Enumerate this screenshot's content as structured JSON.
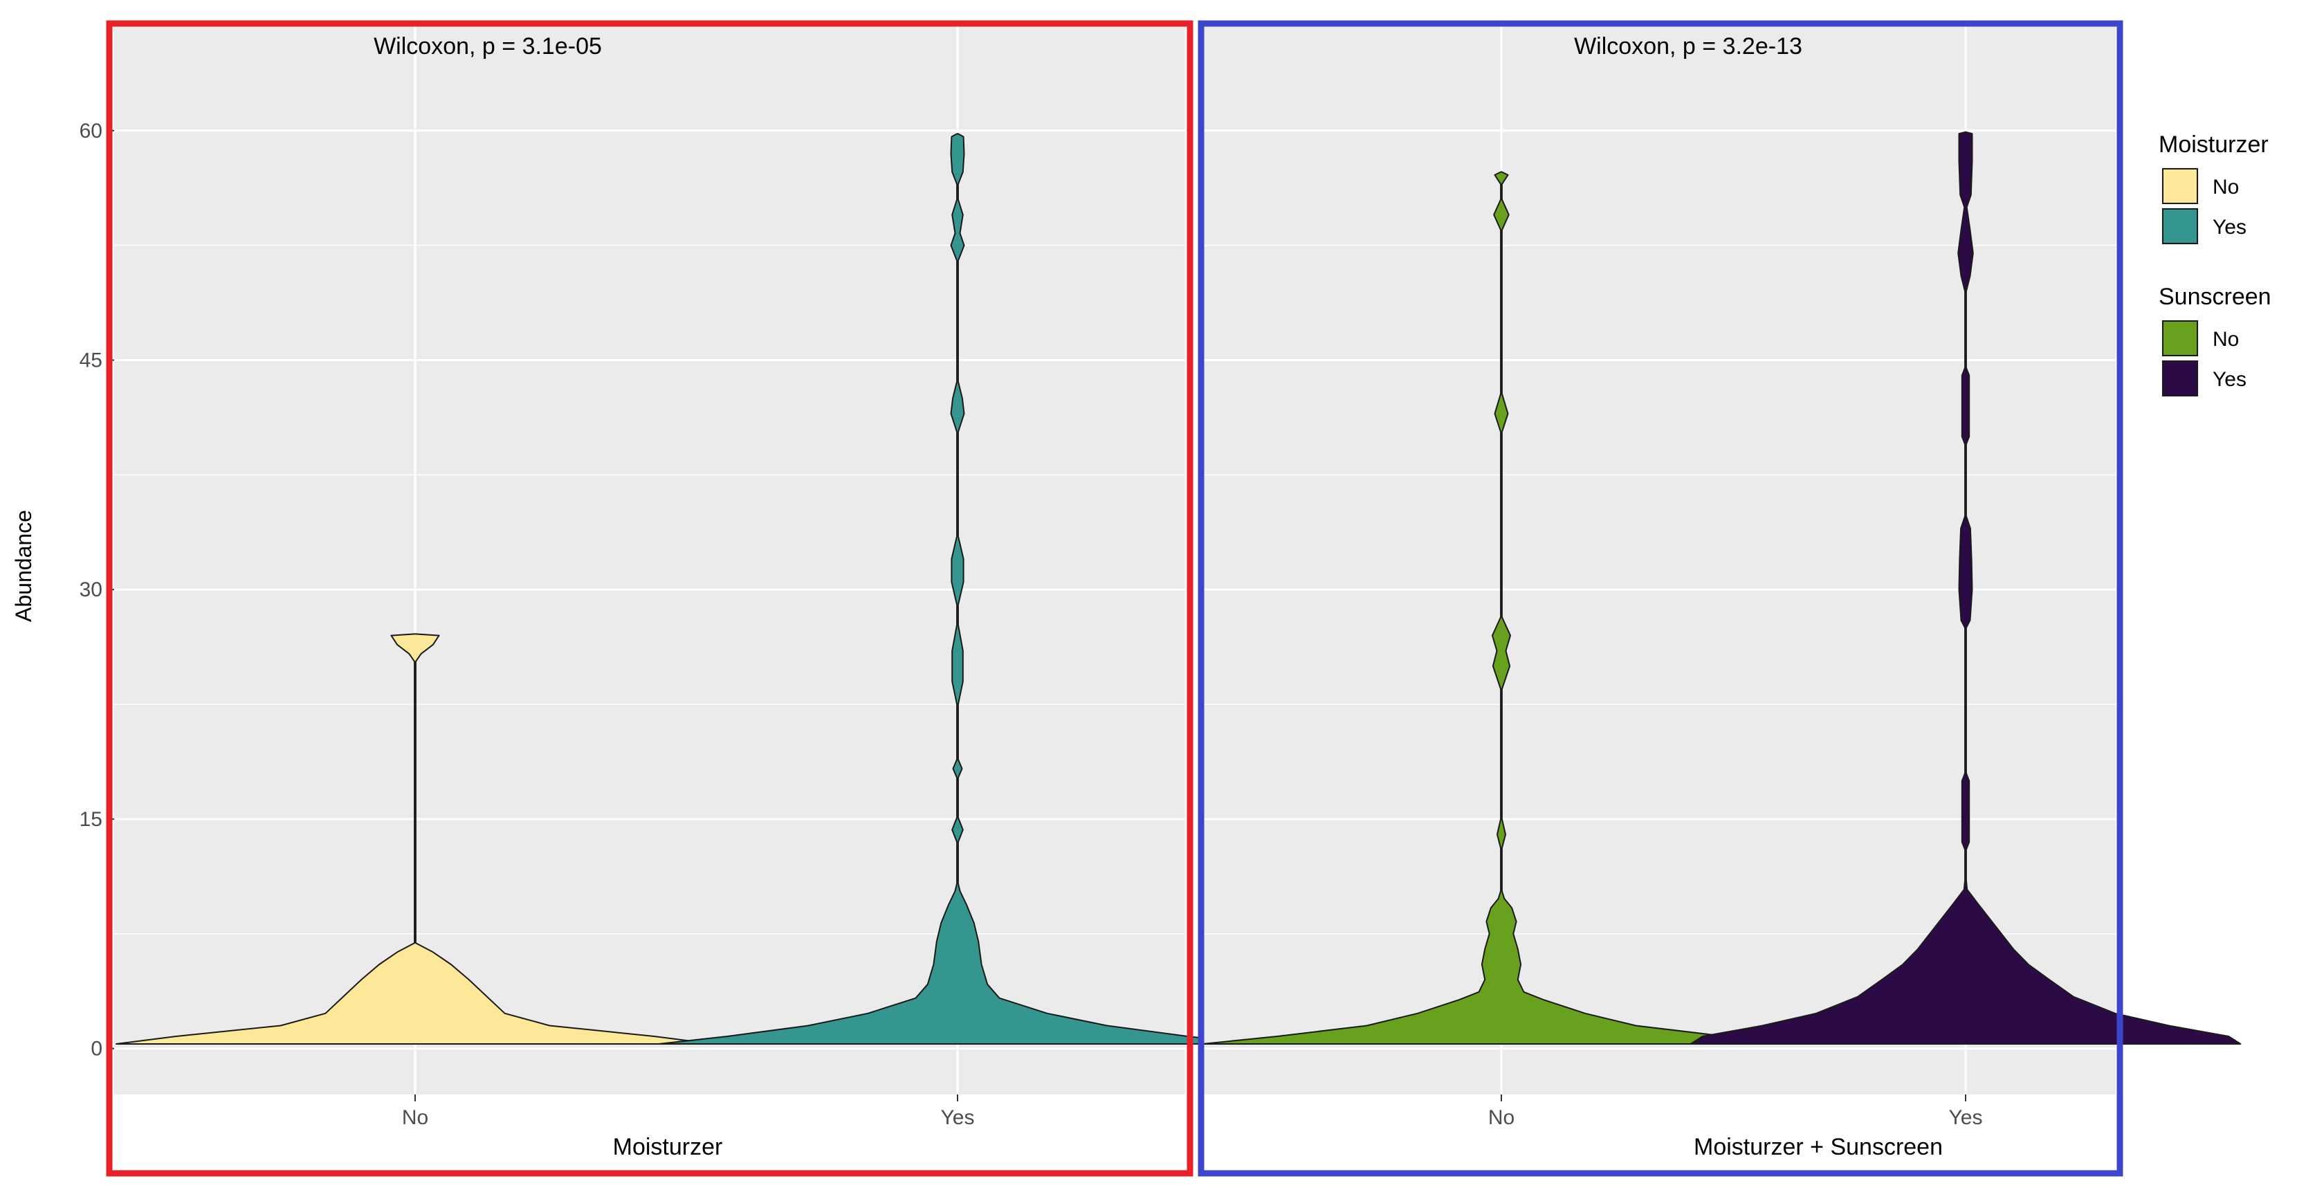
{
  "colors": {
    "panel_bg": "#EBEBEB",
    "grid": "#FFFFFF",
    "left_frame": "#E8202A",
    "right_frame": "#3D45CC",
    "axis_text": "#4D4D4D",
    "title_text": "#000000"
  },
  "y_axis": {
    "label": "Abundance",
    "ticks": [
      0,
      15,
      30,
      45,
      60
    ],
    "tick_labels": [
      "0",
      "15",
      "30",
      "45",
      "60"
    ],
    "range": [
      -3,
      67
    ]
  },
  "legend": {
    "placement": "right",
    "groups": [
      {
        "title": "Moisturzer",
        "items": [
          {
            "label": "No",
            "color": "#FDE89A"
          },
          {
            "label": "Yes",
            "color": "#35958F"
          }
        ]
      },
      {
        "title": "Sunscreen",
        "items": [
          {
            "label": "No",
            "color": "#67A11E"
          },
          {
            "label": "Yes",
            "color": "#2C0A45"
          }
        ]
      }
    ]
  },
  "chart_data": [
    {
      "type": "violin",
      "annotation": "Wilcoxon, p = 3.1e-05",
      "xlabel": "Moisturzer",
      "ylabel": "Abundance",
      "categories": [
        "No",
        "Yes"
      ],
      "ylim": [
        -3,
        67
      ],
      "grid": true,
      "series": [
        {
          "category": "No",
          "color": "#FDE89A",
          "density_profile": [
            [
              0.3,
              1
            ],
            [
              0.8,
              0.8
            ],
            [
              1.5,
              0.45
            ],
            [
              2.3,
              0.3
            ],
            [
              3.4,
              0.24
            ],
            [
              4.5,
              0.18
            ],
            [
              5.5,
              0.12
            ],
            [
              6.3,
              0.06
            ],
            [
              6.9,
              0.002
            ],
            [
              10,
              0.002
            ],
            [
              20,
              0.002
            ],
            [
              25.3,
              0.002
            ],
            [
              25.8,
              0.02
            ],
            [
              26.4,
              0.06
            ],
            [
              27.0,
              0.08
            ],
            [
              27.1,
              0.001
            ]
          ]
        },
        {
          "category": "Yes",
          "color": "#35958F",
          "density_profile": [
            [
              0.3,
              1
            ],
            [
              0.8,
              0.77
            ],
            [
              1.5,
              0.5
            ],
            [
              2.3,
              0.3
            ],
            [
              3.3,
              0.14
            ],
            [
              4.2,
              0.1
            ],
            [
              5.5,
              0.08
            ],
            [
              7,
              0.07
            ],
            [
              8.2,
              0.055
            ],
            [
              9.4,
              0.03
            ],
            [
              10.3,
              0.008
            ],
            [
              10.8,
              0.002
            ],
            [
              13.5,
              0.002
            ],
            [
              14.3,
              0.018
            ],
            [
              15.1,
              0.002
            ],
            [
              17.7,
              0.002
            ],
            [
              18.3,
              0.015
            ],
            [
              18.9,
              0.002
            ],
            [
              22.5,
              0.002
            ],
            [
              24,
              0.018
            ],
            [
              26,
              0.018
            ],
            [
              27.7,
              0.002
            ],
            [
              29,
              0.002
            ],
            [
              30.5,
              0.02
            ],
            [
              32,
              0.02
            ],
            [
              33.5,
              0.002
            ],
            [
              40.3,
              0.002
            ],
            [
              41.5,
              0.022
            ],
            [
              42.5,
              0.016
            ],
            [
              43.6,
              0.002
            ],
            [
              51.5,
              0.002
            ],
            [
              52.5,
              0.022
            ],
            [
              53.3,
              0.008
            ],
            [
              54.5,
              0.018
            ],
            [
              55.5,
              0.002
            ],
            [
              56.5,
              0.002
            ],
            [
              57.3,
              0.018
            ],
            [
              58.5,
              0.022
            ],
            [
              59.6,
              0.02
            ],
            [
              59.8,
              0.001
            ]
          ]
        }
      ]
    },
    {
      "type": "violin",
      "annotation": "Wilcoxon, p = 3.2e-13",
      "xlabel": "Moisturzer + Sunscreen",
      "ylabel": "Abundance",
      "categories": [
        "No",
        "Yes"
      ],
      "ylim": [
        -3,
        67
      ],
      "grid": true,
      "series": [
        {
          "category": "No",
          "color": "#67A11E",
          "density_profile": [
            [
              0.3,
              1
            ],
            [
              0.8,
              0.75
            ],
            [
              1.5,
              0.45
            ],
            [
              2.3,
              0.28
            ],
            [
              3.2,
              0.14
            ],
            [
              3.7,
              0.075
            ],
            [
              4.5,
              0.055
            ],
            [
              5.5,
              0.065
            ],
            [
              6.5,
              0.055
            ],
            [
              7.5,
              0.04
            ],
            [
              8.3,
              0.05
            ],
            [
              9.2,
              0.035
            ],
            [
              9.8,
              0.01
            ],
            [
              10.3,
              0.002
            ],
            [
              13.1,
              0.002
            ],
            [
              14,
              0.014
            ],
            [
              15,
              0.002
            ],
            [
              23.5,
              0.002
            ],
            [
              25,
              0.028
            ],
            [
              26,
              0.015
            ],
            [
              27,
              0.03
            ],
            [
              28.2,
              0.002
            ],
            [
              40.3,
              0.002
            ],
            [
              41.5,
              0.022
            ],
            [
              42.8,
              0.002
            ],
            [
              53.5,
              0.002
            ],
            [
              54.5,
              0.025
            ],
            [
              55.5,
              0.002
            ],
            [
              56.5,
              0.002
            ],
            [
              57.1,
              0.022
            ],
            [
              57.3,
              0.001
            ]
          ]
        },
        {
          "category": "Yes",
          "color": "#2C0A45",
          "density_profile": [
            [
              0.3,
              0.92
            ],
            [
              0.8,
              0.88
            ],
            [
              1.5,
              0.68
            ],
            [
              2.3,
              0.5
            ],
            [
              3.4,
              0.36
            ],
            [
              4.5,
              0.28
            ],
            [
              5.5,
              0.21
            ],
            [
              6.5,
              0.16
            ],
            [
              7.5,
              0.12
            ],
            [
              8.5,
              0.08
            ],
            [
              9.5,
              0.04
            ],
            [
              10.4,
              0.005
            ],
            [
              11,
              0.002
            ],
            [
              13,
              0.002
            ],
            [
              13.5,
              0.012
            ],
            [
              17.5,
              0.012
            ],
            [
              18,
              0.002
            ],
            [
              27.5,
              0.002
            ],
            [
              28,
              0.015
            ],
            [
              30,
              0.022
            ],
            [
              32,
              0.02
            ],
            [
              34,
              0.016
            ],
            [
              34.8,
              0.002
            ],
            [
              39.5,
              0.002
            ],
            [
              40,
              0.012
            ],
            [
              44,
              0.012
            ],
            [
              44.5,
              0.002
            ],
            [
              49.5,
              0.002
            ],
            [
              50.5,
              0.015
            ],
            [
              52,
              0.025
            ],
            [
              53.5,
              0.015
            ],
            [
              55,
              0.004
            ],
            [
              55.8,
              0.018
            ],
            [
              58,
              0.022
            ],
            [
              59.8,
              0.022
            ],
            [
              59.9,
              0.001
            ]
          ]
        }
      ]
    }
  ]
}
